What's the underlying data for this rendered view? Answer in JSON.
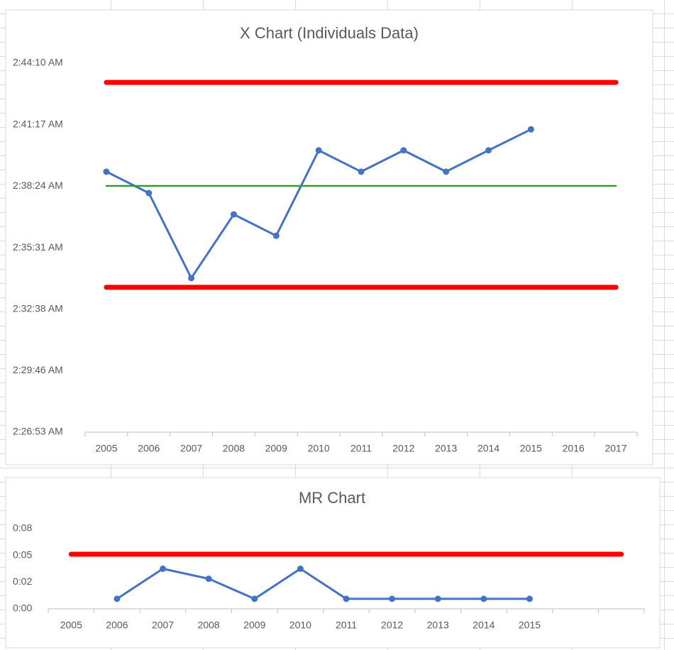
{
  "chart_data": [
    {
      "type": "line",
      "title": "X Chart (Individuals Data)",
      "categories": [
        "2005",
        "2006",
        "2007",
        "2008",
        "2009",
        "2010",
        "2011",
        "2012",
        "2013",
        "2014",
        "2015",
        "2016",
        "2017"
      ],
      "series": [
        {
          "color": "#4472c4",
          "markers": true,
          "values": [
            9545,
            9485,
            9246,
            9425,
            9365,
            9605,
            9545,
            9605,
            9545,
            9605,
            9664,
            null,
            null
          ]
        },
        {
          "color": "#ff0000",
          "markers": false,
          "values": [
            9796,
            9796,
            9796,
            9796,
            9796,
            9796,
            9796,
            9796,
            9796,
            9796,
            9796,
            9796,
            9796
          ]
        },
        {
          "color": "#2ca02c",
          "markers": false,
          "values": [
            9505,
            9505,
            9505,
            9505,
            9505,
            9505,
            9505,
            9505,
            9505,
            9505,
            9505,
            9505,
            9505
          ]
        },
        {
          "color": "#ff0000",
          "markers": false,
          "values": [
            9220,
            9220,
            9220,
            9220,
            9220,
            9220,
            9220,
            9220,
            9220,
            9220,
            9220,
            9220,
            9220
          ]
        }
      ],
      "ylim": [
        8813,
        9850
      ],
      "yticks": [
        {
          "value": 8813,
          "label": "2:26:53 AM"
        },
        {
          "value": 8986,
          "label": "2:29:46 AM"
        },
        {
          "value": 9158,
          "label": "2:32:38 AM"
        },
        {
          "value": 9331,
          "label": "2:35:31 AM"
        },
        {
          "value": 9504,
          "label": "2:38:24 AM"
        },
        {
          "value": 9677,
          "label": "2:41:17 AM"
        },
        {
          "value": 9850,
          "label": "2:44:10 AM"
        }
      ],
      "grid": false
    },
    {
      "type": "line",
      "title": "MR Chart",
      "categories": [
        "2005",
        "2006",
        "2007",
        "2008",
        "2009",
        "2010",
        "2011",
        "2012",
        "2013",
        "2014",
        "2015",
        null,
        null
      ],
      "series": [
        {
          "color": "#4472c4",
          "markers": true,
          "values": [
            null,
            60,
            240,
            180,
            60,
            240,
            60,
            60,
            60,
            60,
            60,
            null,
            null
          ]
        },
        {
          "color": "#ff0000",
          "markers": false,
          "values": [
            327,
            327,
            327,
            327,
            327,
            327,
            327,
            327,
            327,
            327,
            327,
            327,
            327
          ]
        }
      ],
      "ylim": [
        0,
        480
      ],
      "yticks": [
        {
          "value": 0,
          "label": "0:00"
        },
        {
          "value": 160,
          "label": "0:02"
        },
        {
          "value": 320,
          "label": "0:05"
        },
        {
          "value": 480,
          "label": "0:08"
        }
      ],
      "grid": false
    }
  ]
}
